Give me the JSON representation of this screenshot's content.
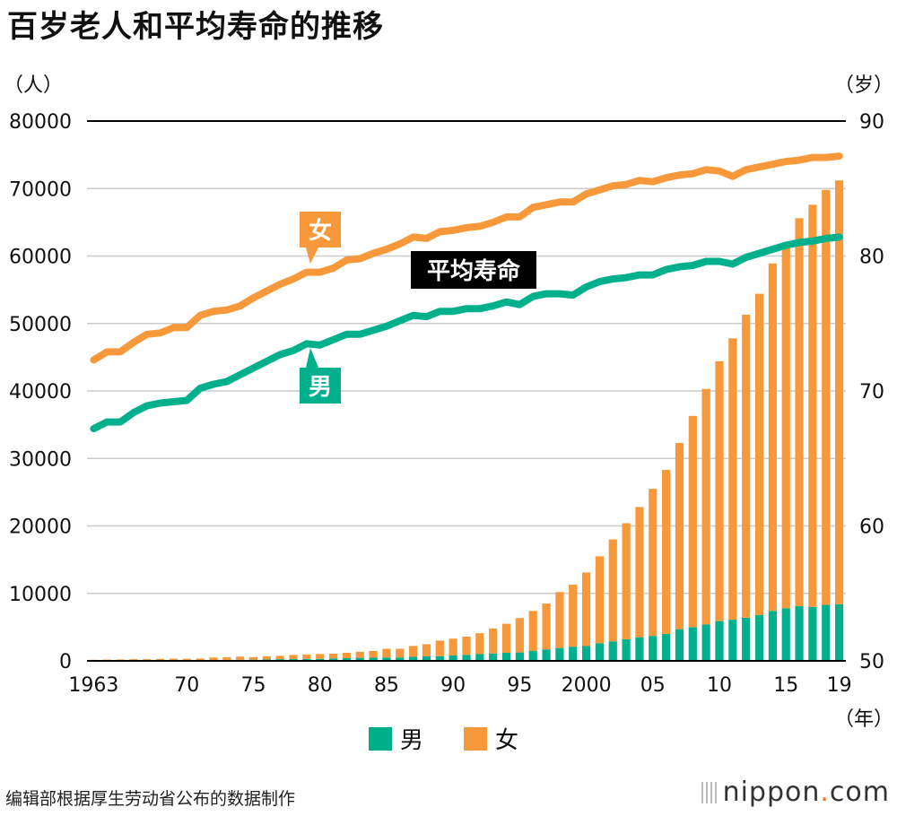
{
  "title": "百岁老人和平均寿命的推移",
  "source": "编辑部根据厚生劳动省公布的数据制作",
  "logo": {
    "text": "nippon",
    "dot": ".",
    "suffix": "com"
  },
  "colors": {
    "male": "#00b08d",
    "female": "#f7993a",
    "grid": "#cccccc",
    "axis": "#000000"
  },
  "chart_data": {
    "type": "bar+line",
    "title": "百岁老人和平均寿命的推移",
    "left_unit": "（人）",
    "right_unit": "（岁）",
    "x_unit": "（年）",
    "ylim_left": [
      0,
      80000
    ],
    "ylim_right": [
      50,
      90
    ],
    "left_ticks": [
      0,
      10000,
      20000,
      30000,
      40000,
      50000,
      60000,
      70000,
      80000
    ],
    "right_ticks": [
      50,
      60,
      70,
      80,
      90
    ],
    "x_tick_labels": [
      {
        "year": 1963,
        "label": "1963"
      },
      {
        "year": 1970,
        "label": "70"
      },
      {
        "year": 1975,
        "label": "75"
      },
      {
        "year": 1980,
        "label": "80"
      },
      {
        "year": 1985,
        "label": "85"
      },
      {
        "year": 1990,
        "label": "90"
      },
      {
        "year": 1995,
        "label": "95"
      },
      {
        "year": 2000,
        "label": "2000"
      },
      {
        "year": 2005,
        "label": "05"
      },
      {
        "year": 2010,
        "label": "10"
      },
      {
        "year": 2015,
        "label": "15"
      },
      {
        "year": 2019,
        "label": "19"
      }
    ],
    "years": [
      1963,
      1964,
      1965,
      1966,
      1967,
      1968,
      1969,
      1970,
      1971,
      1972,
      1973,
      1974,
      1975,
      1976,
      1977,
      1978,
      1979,
      1980,
      1981,
      1982,
      1983,
      1984,
      1985,
      1986,
      1987,
      1988,
      1989,
      1990,
      1991,
      1992,
      1993,
      1994,
      1995,
      1996,
      1997,
      1998,
      1999,
      2000,
      2001,
      2002,
      2003,
      2004,
      2005,
      2006,
      2007,
      2008,
      2009,
      2010,
      2011,
      2012,
      2013,
      2014,
      2015,
      2016,
      2017,
      2018,
      2019
    ],
    "bar_series": [
      {
        "name": "男",
        "values": [
          20,
          31,
          39,
          40,
          40,
          50,
          60,
          80,
          100,
          120,
          140,
          160,
          180,
          200,
          250,
          280,
          300,
          300,
          370,
          400,
          450,
          470,
          500,
          500,
          600,
          670,
          700,
          800,
          900,
          1000,
          1100,
          1200,
          1250,
          1500,
          1700,
          1900,
          2100,
          2200,
          2600,
          2900,
          3200,
          3500,
          3700,
          4000,
          4700,
          5000,
          5400,
          5900,
          6100,
          6400,
          6800,
          7400,
          7800,
          8100,
          8000,
          8300,
          8400
        ]
      },
      {
        "name": "女",
        "values": [
          133,
          160,
          169,
          212,
          212,
          240,
          260,
          230,
          250,
          380,
          400,
          470,
          370,
          470,
          500,
          600,
          650,
          720,
          700,
          800,
          900,
          1000,
          1300,
          1300,
          1600,
          1800,
          2300,
          2500,
          2700,
          3100,
          3700,
          4300,
          5100,
          5900,
          6800,
          8300,
          9200,
          10900,
          12900,
          15100,
          17200,
          19300,
          21800,
          24300,
          27600,
          31300,
          34900,
          38500,
          41700,
          44900,
          47600,
          51500,
          53500,
          57500,
          59600,
          61500,
          62800
        ]
      }
    ],
    "line_series": [
      {
        "name": "女",
        "label": "女",
        "values": [
          72.3,
          72.9,
          72.9,
          73.6,
          74.2,
          74.3,
          74.7,
          74.7,
          75.6,
          75.9,
          76.0,
          76.3,
          76.9,
          77.4,
          77.9,
          78.3,
          78.8,
          78.8,
          79.1,
          79.7,
          79.8,
          80.2,
          80.5,
          80.9,
          81.4,
          81.3,
          81.8,
          81.9,
          82.1,
          82.2,
          82.5,
          82.9,
          82.9,
          83.6,
          83.8,
          84.0,
          84.0,
          84.6,
          84.9,
          85.2,
          85.3,
          85.6,
          85.5,
          85.8,
          86.0,
          86.1,
          86.4,
          86.3,
          85.9,
          86.4,
          86.6,
          86.8,
          87.0,
          87.1,
          87.3,
          87.3,
          87.4
        ]
      },
      {
        "name": "平均寿命(男)",
        "label": "男",
        "values": [
          67.2,
          67.7,
          67.7,
          68.4,
          68.9,
          69.1,
          69.2,
          69.3,
          70.2,
          70.5,
          70.7,
          71.2,
          71.7,
          72.2,
          72.7,
          73.0,
          73.5,
          73.4,
          73.8,
          74.2,
          74.2,
          74.5,
          74.8,
          75.2,
          75.6,
          75.5,
          75.9,
          75.9,
          76.1,
          76.1,
          76.3,
          76.6,
          76.4,
          77.0,
          77.2,
          77.2,
          77.1,
          77.7,
          78.1,
          78.3,
          78.4,
          78.6,
          78.6,
          79.0,
          79.2,
          79.3,
          79.6,
          79.6,
          79.4,
          79.9,
          80.2,
          80.5,
          80.8,
          81.0,
          81.1,
          81.3,
          81.4
        ]
      }
    ],
    "annotations": {
      "female_line": "女",
      "male_line": "男",
      "avg_life": "平均寿命"
    },
    "legend": [
      {
        "name": "男"
      },
      {
        "name": "女"
      }
    ],
    "legend_position": "bottom-center"
  }
}
